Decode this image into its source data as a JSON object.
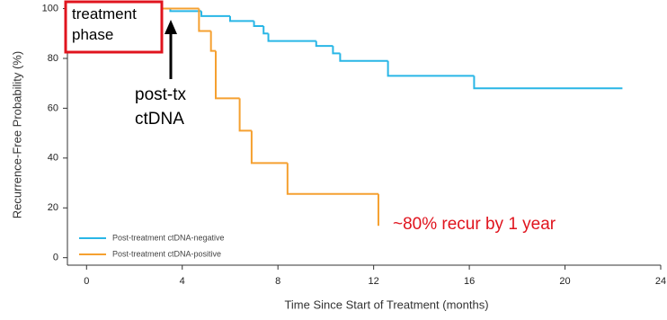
{
  "chart_data": {
    "type": "step",
    "x_label": "Time Since Start of Treatment (months)",
    "y_label": "Recurrence-Free Probability (%)",
    "xlim": [
      -0.8,
      24
    ],
    "xticks": [
      0,
      4,
      8,
      12,
      16,
      20,
      24
    ],
    "ylim": [
      -3,
      102
    ],
    "yticks": [
      0,
      20,
      40,
      60,
      80,
      100
    ],
    "series": [
      {
        "name": "Post-treatment ctDNA-negative",
        "color": "#29b6e6",
        "x": [
          0,
          3.5,
          4.8,
          6,
          7,
          7.4,
          7.6,
          9.6,
          10.3,
          10.6,
          12.6,
          16.2,
          22.4
        ],
        "values": [
          100,
          99,
          97,
          95,
          93,
          90,
          87,
          85,
          82,
          79,
          73,
          68,
          68
        ]
      },
      {
        "name": "Post-treatment ctDNA-positive",
        "color": "#f5a030",
        "x": [
          0,
          4.7,
          5.2,
          5.4,
          6.4,
          6.9,
          8.4,
          12.2
        ],
        "values": [
          100,
          91,
          83,
          64,
          51,
          38,
          25.6,
          12.8
        ]
      }
    ],
    "annotations": [
      "treatment phase",
      "post-tx ctDNA",
      "~80% recur by 1 year"
    ]
  }
}
